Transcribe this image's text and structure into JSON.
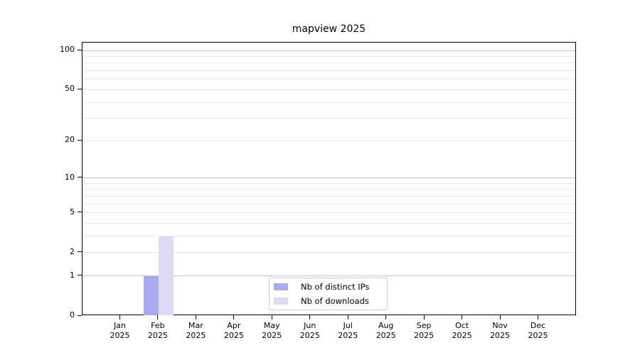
{
  "chart_data": {
    "type": "bar",
    "title": "mapview 2025",
    "year_label": "2025",
    "month_labels": [
      "Jan",
      "Feb",
      "Mar",
      "Apr",
      "May",
      "Jun",
      "Jul",
      "Aug",
      "Sep",
      "Oct",
      "Nov",
      "Dec"
    ],
    "categories": [
      "Jan 2025",
      "Feb 2025",
      "Mar 2025",
      "Apr 2025",
      "May 2025",
      "Jun 2025",
      "Jul 2025",
      "Aug 2025",
      "Sep 2025",
      "Oct 2025",
      "Nov 2025",
      "Dec 2025"
    ],
    "series": [
      {
        "name": "Nb of distinct IPs",
        "color": "#a9a9ef",
        "values": [
          0,
          1,
          0,
          0,
          0,
          0,
          0,
          0,
          0,
          0,
          0,
          0
        ]
      },
      {
        "name": "Nb of downloads",
        "color": "#dbdbf6",
        "values": [
          0,
          3,
          0,
          0,
          0,
          0,
          0,
          0,
          0,
          0,
          0,
          0
        ]
      }
    ],
    "y_axis": {
      "scale": "log1p",
      "tick_values": [
        0,
        1,
        2,
        5,
        10,
        20,
        50,
        100
      ],
      "tick_labels": [
        "0",
        "1",
        "2",
        "5",
        "10",
        "20",
        "50",
        "100"
      ],
      "major_gridline_values": [
        1,
        10,
        100
      ],
      "minor_gridline_values": [
        2,
        3,
        4,
        5,
        6,
        7,
        8,
        9,
        20,
        30,
        40,
        50,
        60,
        70,
        80,
        90
      ],
      "range": [
        0,
        115
      ]
    },
    "legend": {
      "position": "lower-center-inside",
      "items": [
        "Nb of distinct IPs",
        "Nb of downloads"
      ]
    },
    "grid": "on",
    "colors": {
      "major_grid": "#c3c3c3",
      "minor_grid": "#eaeaea",
      "axis": "#000000",
      "text": "#000000",
      "legend_border": "#cccccc",
      "legend_background": "#ffffff"
    }
  }
}
